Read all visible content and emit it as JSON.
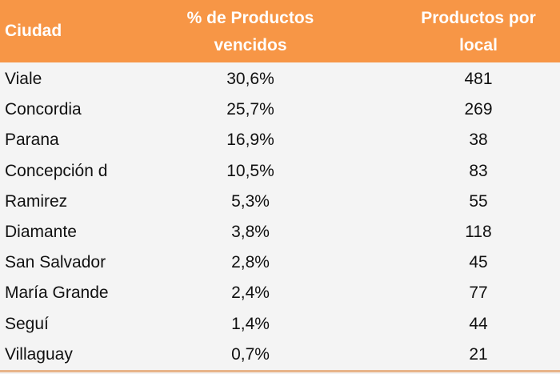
{
  "header": {
    "city": "Ciudad",
    "pct": [
      "% de Productos",
      "vencidos"
    ],
    "count": [
      "Productos por",
      "local"
    ]
  },
  "colors": {
    "header_bg": "#f79646",
    "row_bg": "#f4f4f4"
  },
  "rows": [
    {
      "city": "Viale",
      "pct": "30,6%",
      "count": "481"
    },
    {
      "city": "Concordia",
      "pct": "25,7%",
      "count": "269"
    },
    {
      "city": "Parana",
      "pct": "16,9%",
      "count": "38"
    },
    {
      "city": "Concepción d",
      "pct": "10,5%",
      "count": "83"
    },
    {
      "city": "Ramirez",
      "pct": "5,3%",
      "count": "55"
    },
    {
      "city": "Diamante",
      "pct": "3,8%",
      "count": "118"
    },
    {
      "city": "San Salvador",
      "pct": "2,8%",
      "count": "45"
    },
    {
      "city": "María Grande",
      "pct": "2,4%",
      "count": "77"
    },
    {
      "city": "Seguí",
      "pct": "1,4%",
      "count": "44"
    },
    {
      "city": "Villaguay",
      "pct": "0,7%",
      "count": "21"
    }
  ],
  "chart_data": {
    "type": "table",
    "columns": [
      "Ciudad",
      "% de Productos vencidos",
      "Productos por local"
    ],
    "rows": [
      [
        "Viale",
        30.6,
        481
      ],
      [
        "Concordia",
        25.7,
        269
      ],
      [
        "Parana",
        16.9,
        38
      ],
      [
        "Concepción d",
        10.5,
        83
      ],
      [
        "Ramirez",
        5.3,
        55
      ],
      [
        "Diamante",
        3.8,
        118
      ],
      [
        "San Salvador",
        2.8,
        45
      ],
      [
        "María Grande",
        2.4,
        77
      ],
      [
        "Seguí",
        1.4,
        44
      ],
      [
        "Villaguay",
        0.7,
        21
      ]
    ]
  }
}
